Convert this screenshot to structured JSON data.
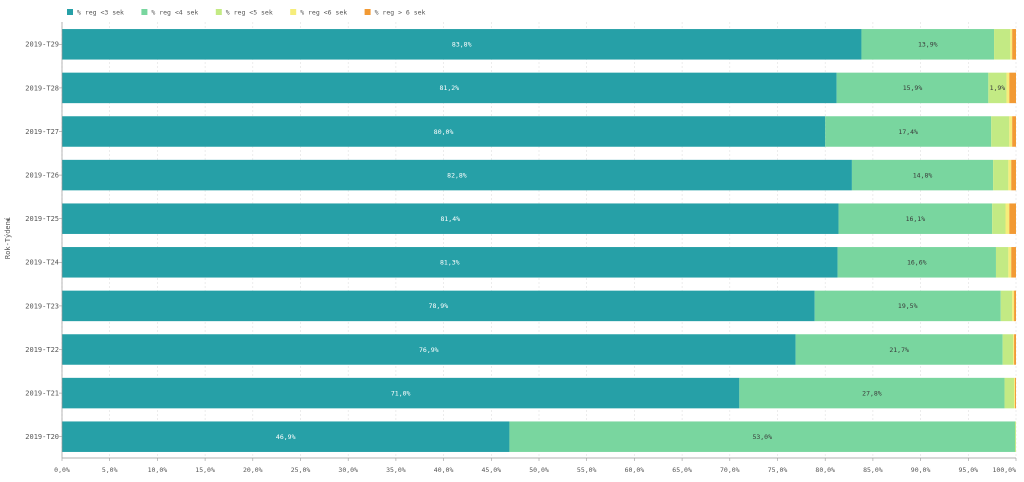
{
  "chart_data": {
    "type": "bar",
    "orientation": "horizontal",
    "stacked": true,
    "percent_stacked": true,
    "xlim": [
      0,
      100
    ],
    "x_ticks": [
      "0,0%",
      "5,0%",
      "10,0%",
      "15,0%",
      "20,0%",
      "25,0%",
      "30,0%",
      "35,0%",
      "40,0%",
      "45,0%",
      "50,0%",
      "55,0%",
      "60,0%",
      "65,0%",
      "70,0%",
      "75,0%",
      "80,0%",
      "85,0%",
      "90,0%",
      "95,0%",
      "100,0%"
    ],
    "ylabel": "Rok-Týdení",
    "ylabel_arrow": "▼",
    "legend_position": "top-left",
    "categories": [
      "2019-T29",
      "2019-T28",
      "2019-T27",
      "2019-T26",
      "2019-T25",
      "2019-T24",
      "2019-T23",
      "2019-T22",
      "2019-T21",
      "2019-T20"
    ],
    "series": [
      {
        "name": "% reg <3 sek",
        "color": "#26A0A7",
        "values": [
          83.8,
          81.2,
          80.0,
          82.8,
          81.4,
          81.3,
          78.9,
          76.9,
          71.0,
          46.9
        ],
        "labels": [
          "83,8%",
          "81,2%",
          "80,0%",
          "82,8%",
          "81,4%",
          "81,3%",
          "78,9%",
          "76,9%",
          "71,0%",
          "46,9%"
        ]
      },
      {
        "name": "% reg <4 sek",
        "color": "#79D69F",
        "values": [
          13.9,
          15.9,
          17.4,
          14.8,
          16.1,
          16.6,
          19.5,
          21.7,
          27.8,
          53.0
        ],
        "labels": [
          "13,9%",
          "15,9%",
          "17,4%",
          "14,8%",
          "16,1%",
          "16,6%",
          "19,5%",
          "21,7%",
          "27,8%",
          "53,0%"
        ]
      },
      {
        "name": "% reg <5 sek",
        "color": "#C3EA84",
        "values": [
          1.7,
          1.9,
          1.9,
          1.6,
          1.4,
          1.3,
          1.2,
          1.1,
          1.0,
          0.1
        ],
        "labels": [
          "",
          "1,9%",
          "",
          "",
          "",
          "",
          "",
          "",
          "",
          ""
        ]
      },
      {
        "name": "% reg <6 sek",
        "color": "#F6ED7B",
        "values": [
          0.2,
          0.3,
          0.3,
          0.3,
          0.4,
          0.3,
          0.2,
          0.1,
          0.1,
          0.0
        ],
        "labels": [
          "",
          "",
          "",
          "",
          "",
          "",
          "",
          "",
          "",
          ""
        ]
      },
      {
        "name": "% reg > 6 sek",
        "color": "#F29A34",
        "values": [
          0.4,
          0.7,
          0.4,
          0.5,
          0.7,
          0.5,
          0.2,
          0.2,
          0.1,
          0.0
        ],
        "labels": [
          "",
          "",
          "",
          "",
          "",
          "",
          "",
          "",
          "",
          ""
        ]
      }
    ]
  }
}
